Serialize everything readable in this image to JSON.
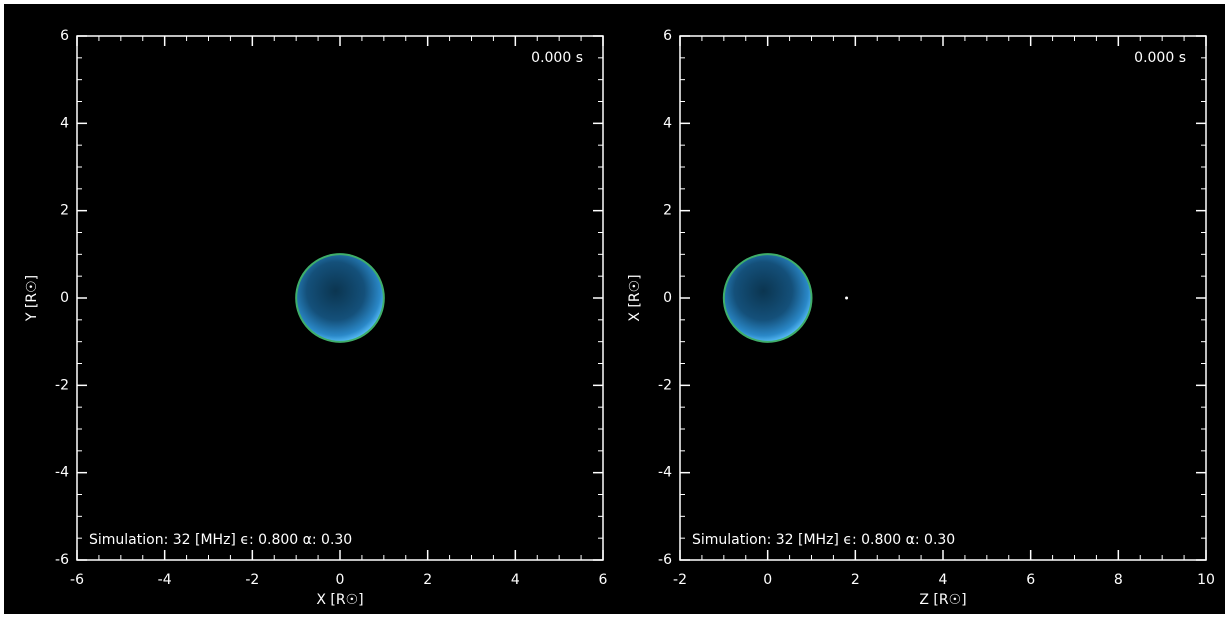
{
  "chart_data": [
    {
      "type": "image",
      "time_label": "0.000 s",
      "annotation": "Simulation: 32 [MHz]   ϵ: 0.800   α: 0.30",
      "xlabel": "X [R☉]",
      "ylabel": "Y [R☉]",
      "xlim": [
        -6,
        6
      ],
      "ylim": [
        -6,
        6
      ],
      "xticks": [
        -6,
        -4,
        -2,
        0,
        2,
        4,
        6
      ],
      "yticks": [
        -6,
        -4,
        -2,
        0,
        2,
        4,
        6
      ],
      "disk": {
        "x": 0,
        "y": 0,
        "r": 1
      }
    },
    {
      "type": "image",
      "time_label": "0.000 s",
      "annotation": "Simulation: 32 [MHz]   ϵ: 0.800   α: 0.30",
      "xlabel": "Z [R☉]",
      "ylabel": "X [R☉]",
      "xlim": [
        -2,
        10
      ],
      "ylim": [
        -6,
        6
      ],
      "xticks": [
        -2,
        0,
        2,
        4,
        6,
        8,
        10
      ],
      "yticks": [
        -6,
        -4,
        -2,
        0,
        2,
        4,
        6
      ],
      "disk": {
        "x": 0,
        "y": 0,
        "r": 1
      },
      "points": {
        "x": [
          1.8
        ],
        "y": [
          0
        ]
      }
    }
  ]
}
